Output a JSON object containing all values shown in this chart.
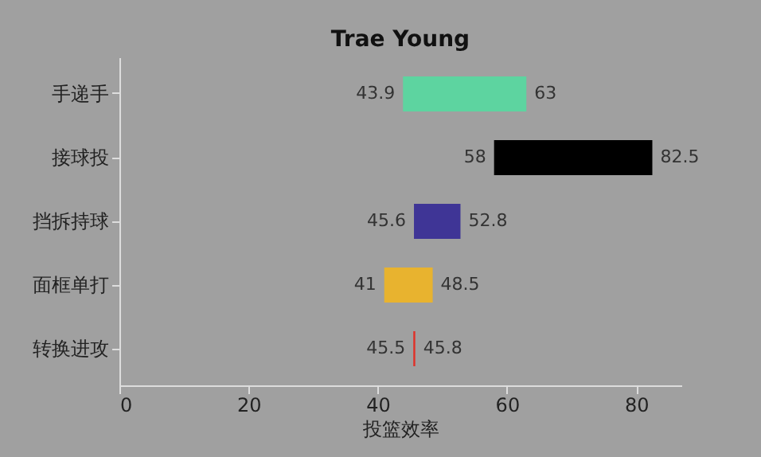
{
  "chart_data": {
    "type": "bar",
    "orientation": "horizontal",
    "title": "Trae Young",
    "xlabel": "投篮效率",
    "categories": [
      "手递手",
      "接球投",
      "挡拆持球",
      "面框单打",
      "转换进攻"
    ],
    "base": [
      43.9,
      58,
      45.6,
      41,
      45.5
    ],
    "values": [
      19.1,
      24.5,
      7.2,
      7.5,
      0.3
    ],
    "colors": [
      "#5dd4a0",
      "#000000",
      "#3f3596",
      "#e8b32f",
      "#e03028"
    ],
    "value_labels": [
      "63",
      "82.5",
      "52.8",
      "48.5",
      "45.8"
    ],
    "annotations": [
      {
        "text": "43.9",
        "x": 43.9,
        "y": "手递手"
      },
      {
        "text": "58",
        "x": 58,
        "y": "接球投"
      },
      {
        "text": "45.6",
        "x": 45.6,
        "y": "挡拆持球"
      },
      {
        "text": "41",
        "x": 41,
        "y": "面框单打"
      },
      {
        "text": "45.5",
        "x": 45.5,
        "y": "转换进攻"
      }
    ],
    "xlim": [
      0,
      87
    ],
    "xticks": [
      0,
      20,
      40,
      60,
      80
    ],
    "grid": false
  }
}
